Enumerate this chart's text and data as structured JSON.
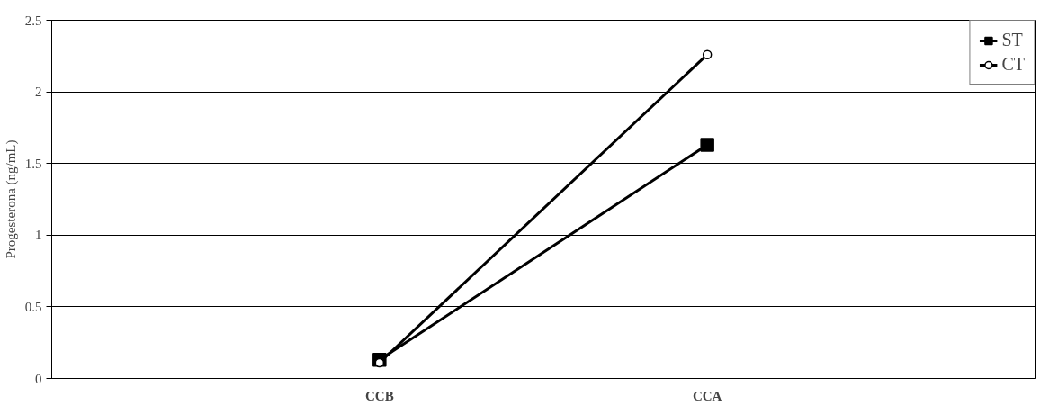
{
  "chart_data": {
    "type": "line",
    "ylabel": "Progesterona (ng/mL)",
    "categories": [
      "CCB",
      "CCA"
    ],
    "series": [
      {
        "name": "ST",
        "color": "#000000",
        "values": [
          0.13,
          1.63
        ],
        "marker": "square"
      },
      {
        "name": "CT",
        "color": "#000000",
        "values": [
          0.11,
          2.26
        ],
        "marker": "circle"
      }
    ],
    "ylim": [
      0,
      2.5
    ],
    "yticks": [
      0,
      0.5,
      1,
      1.5,
      2,
      2.5
    ],
    "grid": "y",
    "legend": "top right",
    "line_style": "solid"
  }
}
